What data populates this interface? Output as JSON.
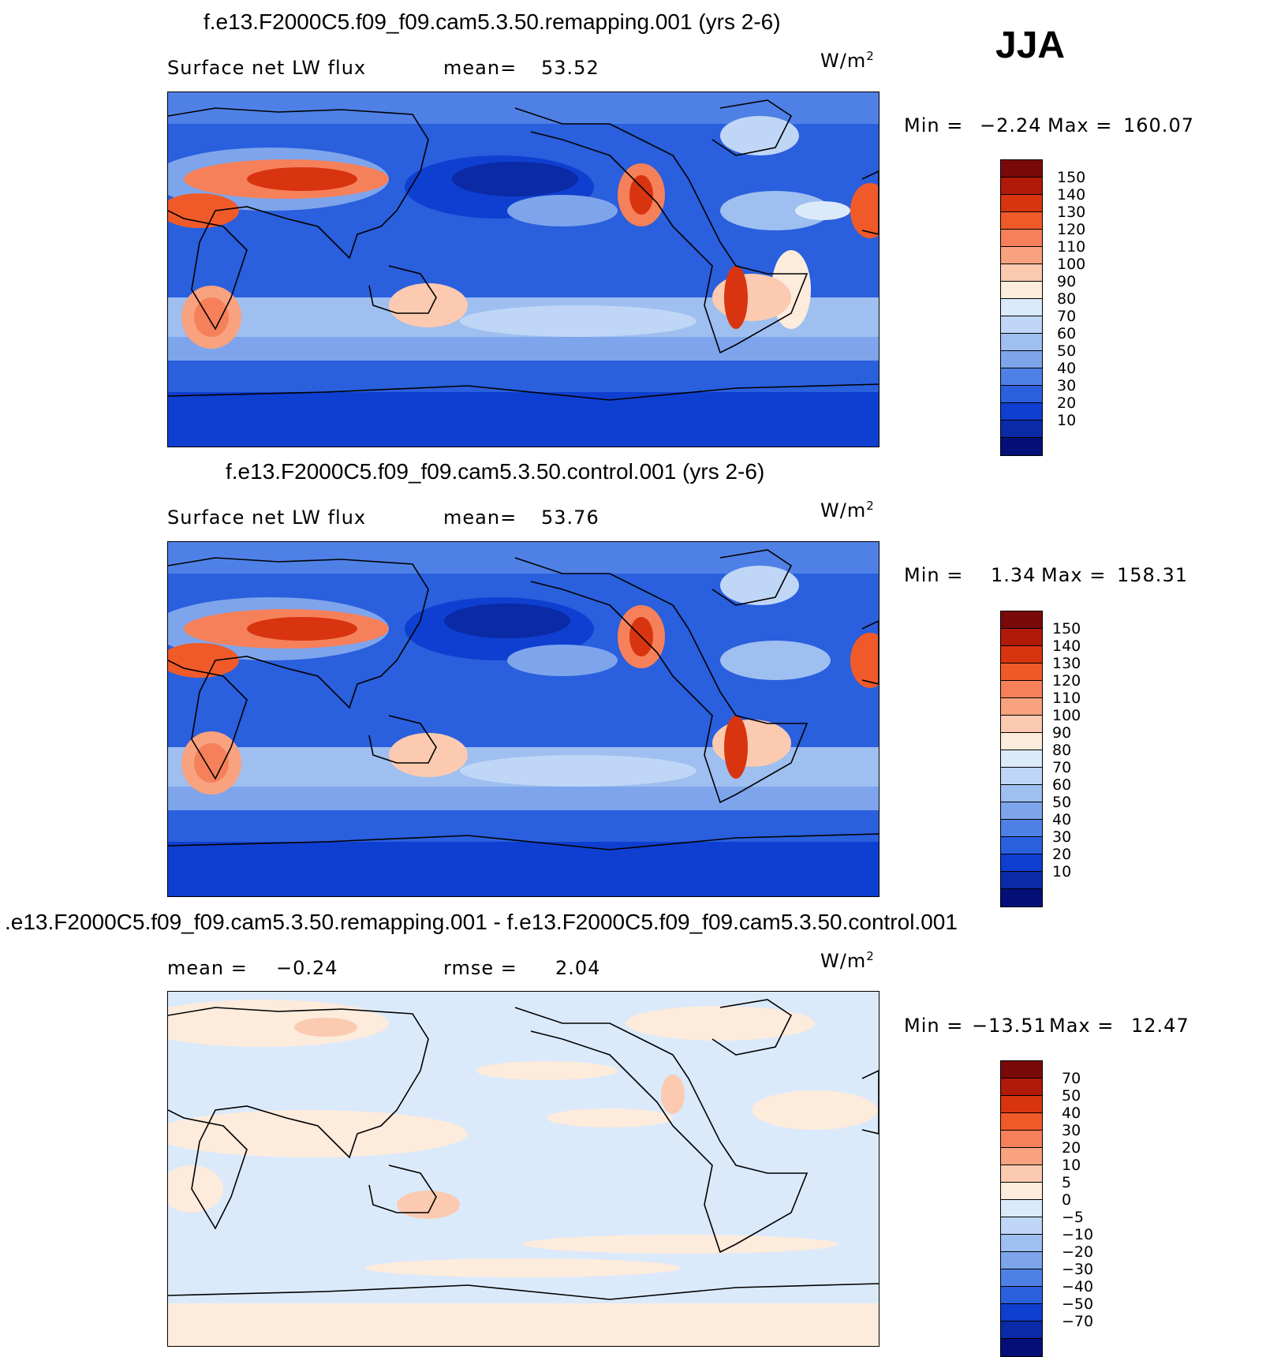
{
  "season": "JJA",
  "panels": [
    {
      "title": "f.e13.F2000C5.f09_f09.cam5.3.50.remapping.001 (yrs 2-6)",
      "left_label": "Surface net LW flux",
      "stat_label": "mean=",
      "stat_value": "53.52",
      "units": "W/m",
      "units_sup": "2",
      "min_label": "Min =",
      "min_value": "−2.24",
      "max_label": "Max =",
      "max_value": "160.07",
      "colorbar_labels": [
        "150",
        "140",
        "130",
        "120",
        "110",
        "100",
        "90",
        "80",
        "70",
        "60",
        "50",
        "40",
        "30",
        "20",
        "10"
      ]
    },
    {
      "title": "f.e13.F2000C5.f09_f09.cam5.3.50.control.001 (yrs 2-6)",
      "left_label": "Surface net LW flux",
      "stat_label": "mean=",
      "stat_value": "53.76",
      "units": "W/m",
      "units_sup": "2",
      "min_label": "Min =",
      "min_value": "1.34",
      "max_label": "Max =",
      "max_value": "158.31",
      "colorbar_labels": [
        "150",
        "140",
        "130",
        "120",
        "110",
        "100",
        "90",
        "80",
        "70",
        "60",
        "50",
        "40",
        "30",
        "20",
        "10"
      ]
    },
    {
      "title": ".e13.F2000C5.f09_f09.cam5.3.50.remapping.001 - f.e13.F2000C5.f09_f09.cam5.3.50.control.001",
      "left_label": "mean =",
      "left_value": "−0.24",
      "stat_label": "rmse =",
      "stat_value": "2.04",
      "units": "W/m",
      "units_sup": "2",
      "min_label": "Min =",
      "min_value": "−13.51",
      "max_label": "Max =",
      "max_value": "12.47",
      "colorbar_labels": [
        "70",
        "50",
        "40",
        "30",
        "20",
        "10",
        "5",
        "0",
        "−5",
        "−10",
        "−20",
        "−30",
        "−40",
        "−50",
        "−70"
      ]
    }
  ],
  "colors": {
    "field_scale": [
      "#7a0a0a",
      "#b01a08",
      "#d8340f",
      "#f05a28",
      "#f6805a",
      "#f8a27f",
      "#fbcab0",
      "#fdebdc",
      "#dbeafb",
      "#bfd6f6",
      "#9ebff0",
      "#7ea5ec",
      "#4f80e6",
      "#2a5fdd",
      "#0f3fd0",
      "#0a2aa6",
      "#050f78"
    ],
    "diff_scale": [
      "#7a0a0a",
      "#b01a08",
      "#d8340f",
      "#f05a28",
      "#f6805a",
      "#f8a27f",
      "#fbcab0",
      "#fdebdc",
      "#dbeafb",
      "#bfd6f6",
      "#9ebff0",
      "#7ea5ec",
      "#4f80e6",
      "#2a5fdd",
      "#0f3fd0",
      "#0a2aa6",
      "#050f78"
    ]
  }
}
